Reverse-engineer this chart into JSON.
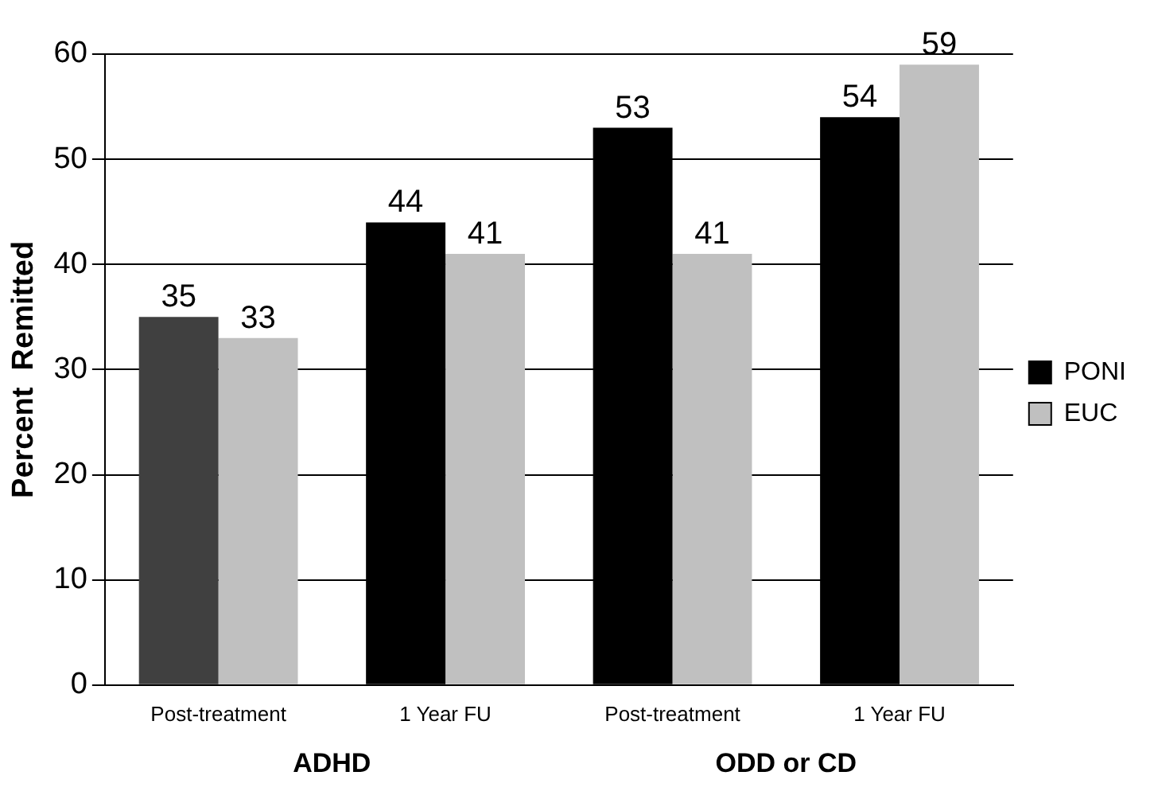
{
  "chart_data": {
    "type": "bar",
    "ylabel": "Percent  Remitted",
    "categories": [
      "Post-treatment",
      "1 Year FU",
      "Post-treatment",
      "1 Year FU"
    ],
    "series": [
      {
        "name": "PONI",
        "color": "#000000",
        "colors": [
          "#404040",
          "#000000",
          "#000000",
          "#000000"
        ],
        "values": [
          35,
          44,
          53,
          54
        ]
      },
      {
        "name": "EUC",
        "color": "#c0c0c0",
        "values": [
          33,
          41,
          41,
          59
        ]
      }
    ],
    "ylim": [
      0,
      60
    ],
    "yticks": [
      0,
      10,
      20,
      30,
      40,
      50,
      60
    ],
    "grid": "y",
    "legend": "right",
    "data_labels": true,
    "annotations": [
      "ADHD",
      "ODD or CD"
    ]
  }
}
